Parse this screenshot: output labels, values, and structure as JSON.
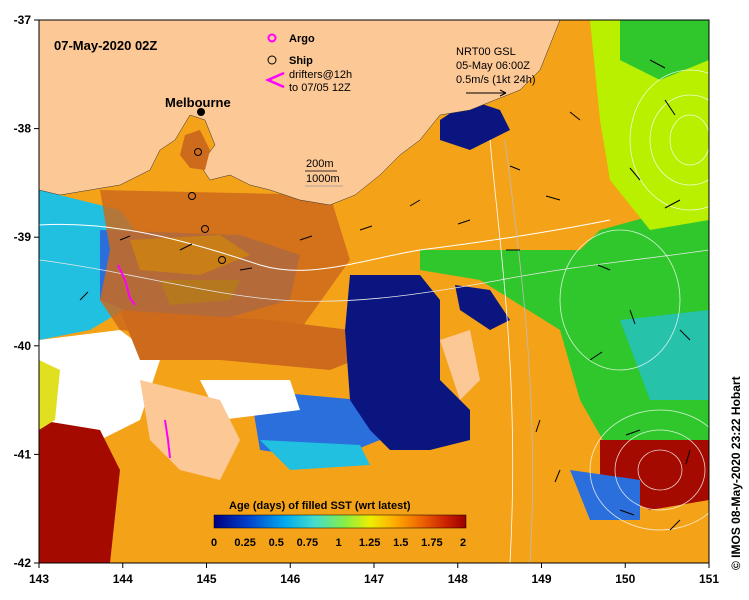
{
  "title": "07-May-2020 02Z",
  "city_label": "Melbourne",
  "legend": {
    "argo": "Argo",
    "ship": "Ship",
    "drifters_line1": "drifters@12h",
    "drifters_line2": "to 07/05 12Z"
  },
  "reference": {
    "line1": "NRT00 GSL",
    "line2": "05-May 06:00Z",
    "line3": "0.5m/s (1kt 24h)"
  },
  "isobaths": {
    "shallow": "200m",
    "deep": "1000m"
  },
  "colorbar": {
    "title": "Age (days) of filled SST (wrt latest)",
    "ticks": [
      "0",
      "0.25",
      "0.5",
      "0.75",
      "1",
      "1.25",
      "1.5",
      "1.75",
      "2"
    ],
    "colors": [
      "#000080",
      "#0044cc",
      "#00aaee",
      "#44ddcc",
      "#88ee44",
      "#eeee00",
      "#ffaa00",
      "#ee6600",
      "#cc2200",
      "#990000"
    ]
  },
  "axes": {
    "x_ticks": [
      "143",
      "144",
      "145",
      "146",
      "147",
      "148",
      "149",
      "150",
      "151"
    ],
    "y_ticks": [
      "-37",
      "-38",
      "-39",
      "-40",
      "-41",
      "-42"
    ]
  },
  "credit": "© IMOS 08-May-2020 23:22 Hobart",
  "colors": {
    "land": "#fcc896",
    "orange": "#f4a318",
    "brown": "#cd6a1c",
    "navy": "#0a1580",
    "green": "#2fc72c",
    "lime": "#b8f000",
    "cyan": "#22c0e0",
    "darkred": "#a40a00",
    "white": "#ffffff",
    "argo": "#ff00ff",
    "drifter": "#ff00ff"
  }
}
